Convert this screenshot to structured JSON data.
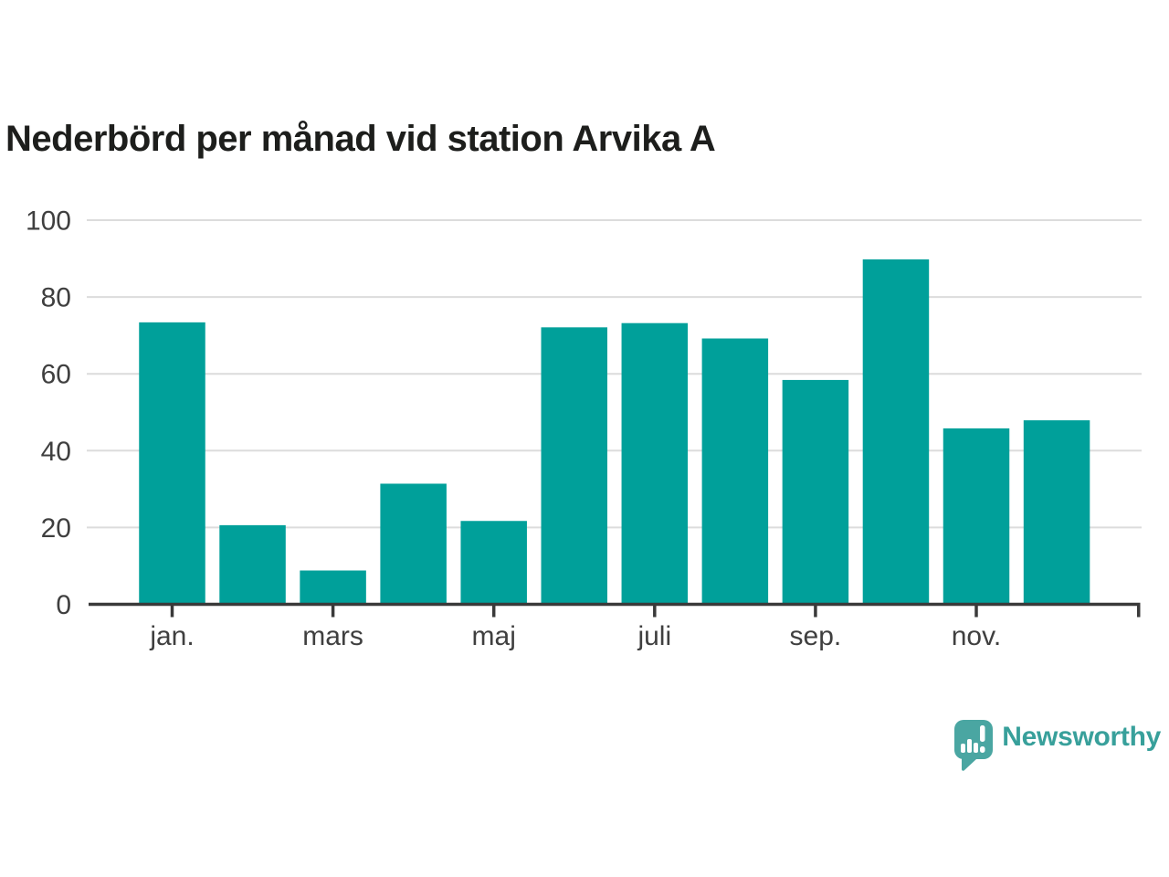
{
  "page": {
    "background": "#ffffff"
  },
  "chart_data": {
    "type": "bar",
    "title": "Nederbörd per månad vid station Arvika A",
    "values": [
      73.4,
      20.6,
      8.8,
      31.4,
      21.7,
      72.1,
      73.2,
      69.2,
      58.4,
      89.8,
      45.8,
      47.9
    ],
    "x_tick_labels": [
      "jan.",
      "mars",
      "maj",
      "juli",
      "sep.",
      "nov."
    ],
    "x_tick_indices": [
      0,
      2,
      4,
      6,
      8,
      10
    ],
    "y_ticks": [
      0,
      20,
      40,
      60,
      80,
      100
    ],
    "ylim": [
      0,
      100
    ],
    "xlabel": "",
    "ylabel": "",
    "legend": "none",
    "grid": "horizontal-only",
    "bar_color": "#00a09a"
  },
  "branding": {
    "logo_text": "Newsworthy",
    "logo_text_color": "#38a09b",
    "logo_icon": "newsworthy-speech-bubble-bar-chart-icon",
    "logo_icon_color": "#4aa6a2"
  },
  "colors": {
    "title": "#1d1e1c",
    "axis_labels": "#3f3f3f",
    "axis_line": "#3a3a3a",
    "gridline": "#dcdcdc"
  }
}
